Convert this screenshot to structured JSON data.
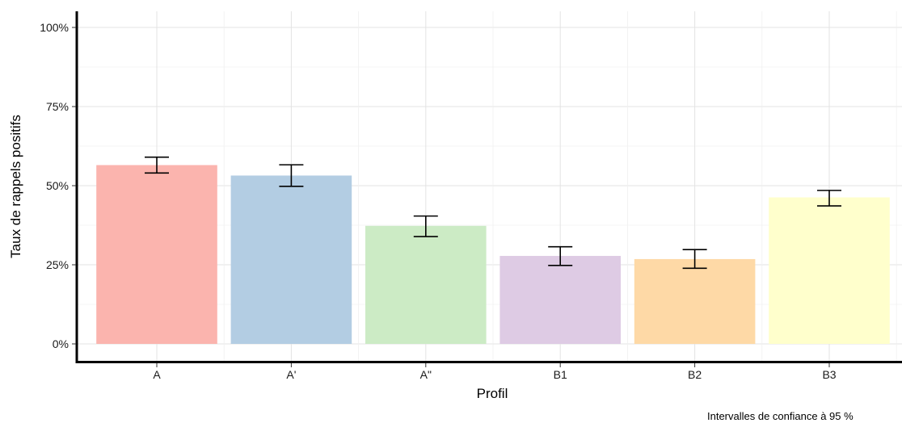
{
  "chart_data": {
    "type": "bar",
    "categories": [
      "A",
      "A'",
      "A\"",
      "B1",
      "B2",
      "B3"
    ],
    "values": [
      56.5,
      53.2,
      37.3,
      27.8,
      26.8,
      46.3
    ],
    "ci_low": [
      54.0,
      49.8,
      33.9,
      24.8,
      23.9,
      43.6
    ],
    "ci_high": [
      59.0,
      56.6,
      40.4,
      30.7,
      29.8,
      48.5
    ],
    "colors": [
      "#FBB4AE",
      "#B3CDE3",
      "#CCEBC5",
      "#DECBE4",
      "#FED9A6",
      "#FFFFCC"
    ],
    "xlabel": "Profil",
    "ylabel": "Taux de rappels positifs",
    "ylim": [
      0,
      100
    ],
    "yticks": [
      "0%",
      "25%",
      "50%",
      "75%",
      "100%"
    ],
    "ytick_values": [
      0,
      25,
      50,
      75,
      100
    ],
    "caption": "Intervalles de confiance à 95 %",
    "grid": true,
    "legend": "none"
  }
}
